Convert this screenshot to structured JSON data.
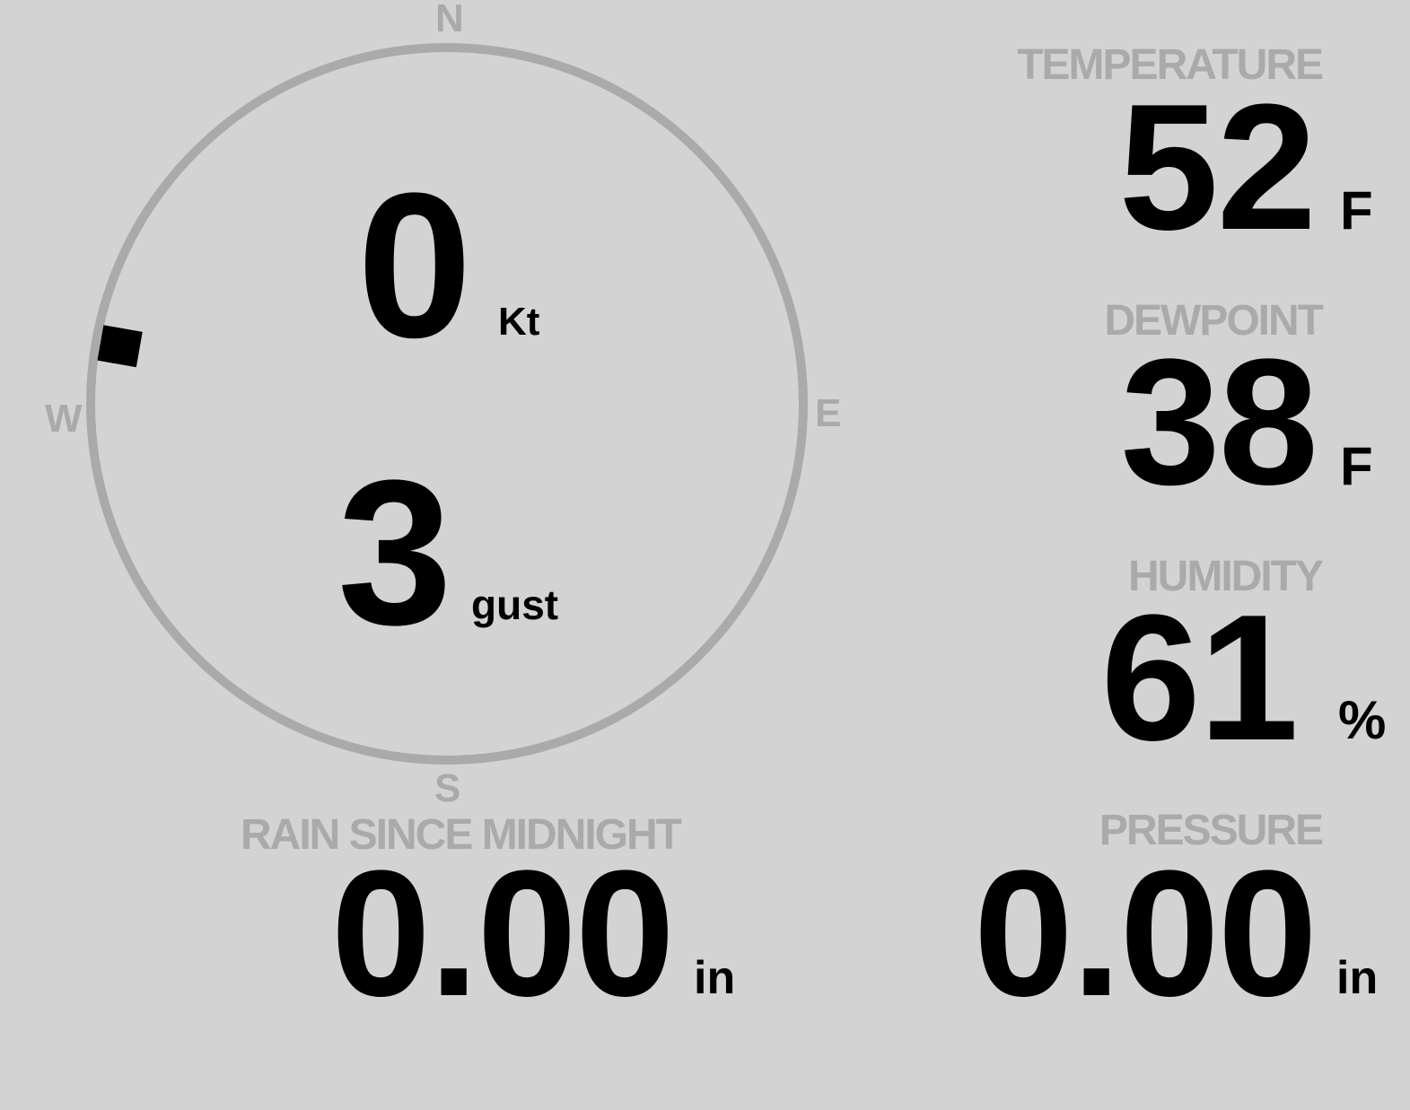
{
  "colors": {
    "background": "#d3d3d3",
    "label": "#aaaaaa",
    "value": "#000000",
    "compass_ring": "#aaaaaa"
  },
  "wind": {
    "compass": {
      "n": "N",
      "e": "E",
      "s": "S",
      "w": "W"
    },
    "direction_deg": 280,
    "speed": "0",
    "speed_unit": "Kt",
    "gust": "3",
    "gust_unit": "gust"
  },
  "temperature": {
    "label": "TEMPERATURE",
    "value": "52",
    "unit": "F"
  },
  "dewpoint": {
    "label": "DEWPOINT",
    "value": "38",
    "unit": "F"
  },
  "humidity": {
    "label": "HUMIDITY",
    "value": "61",
    "unit": "%"
  },
  "rain": {
    "label": "RAIN SINCE MIDNIGHT",
    "value": "0.00",
    "unit": "in"
  },
  "pressure": {
    "label": "PRESSURE",
    "value": "0.00",
    "unit": "in"
  }
}
